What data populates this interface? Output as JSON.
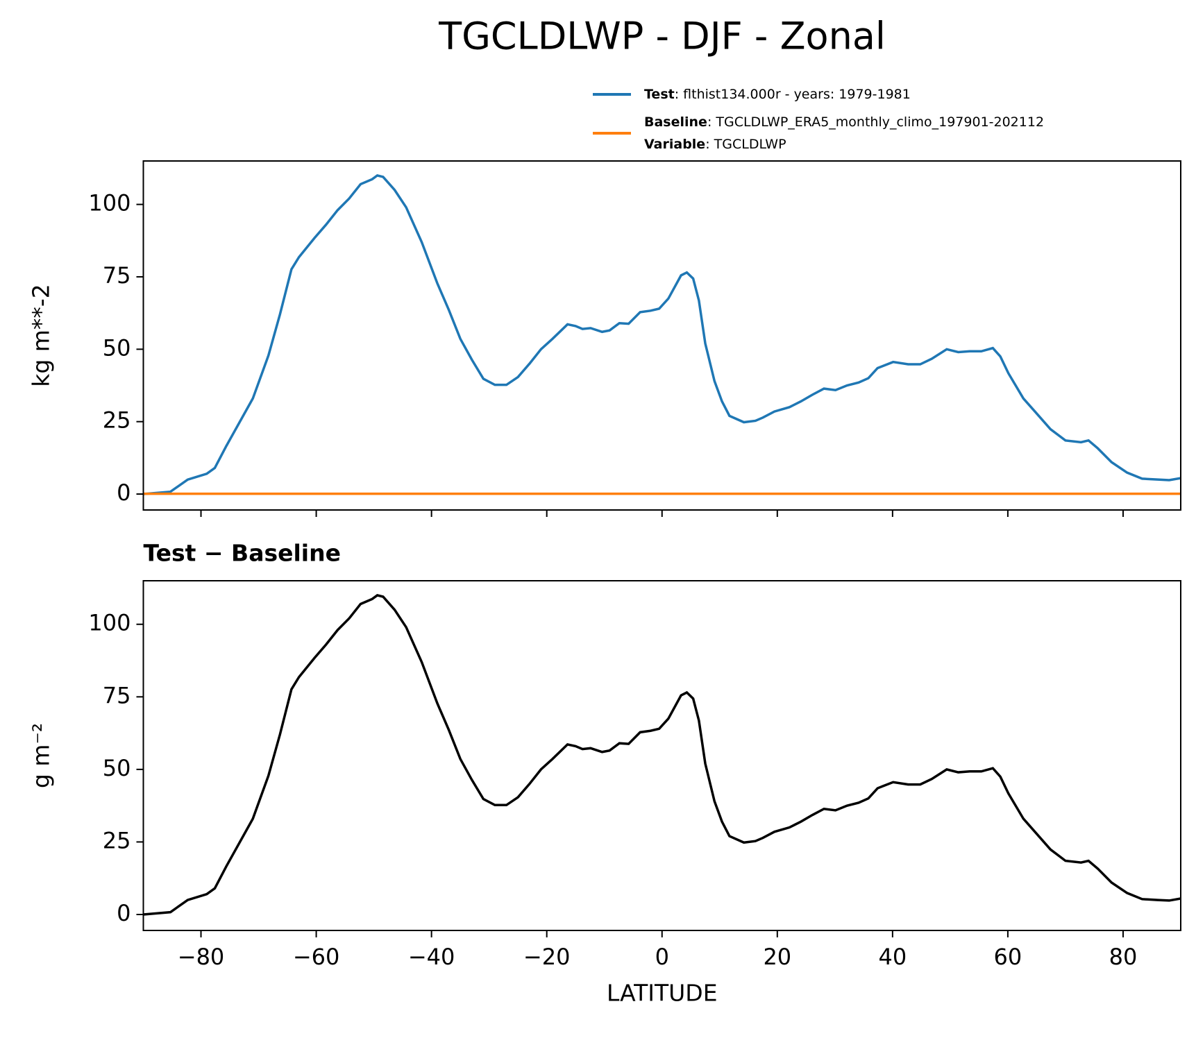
{
  "title": "TGCLDLWP - DJF - Zonal",
  "chart_data": [
    {
      "type": "line",
      "ylabel": "kg m**-2",
      "show_xtick_labels": false,
      "xlim": [
        -90,
        90
      ],
      "ylim": [
        -5.5,
        115
      ],
      "xticks": [
        {
          "value": -80,
          "label": "−80"
        },
        {
          "value": -60,
          "label": "−60"
        },
        {
          "value": -40,
          "label": "−40"
        },
        {
          "value": -20,
          "label": "−20"
        },
        0,
        20,
        40,
        60,
        80
      ],
      "yticks": [
        0,
        25,
        50,
        75,
        100
      ],
      "legend": "upper right outside",
      "series": [
        {
          "name": "Test",
          "description": ": flthist134.000r - years: 1979-1981",
          "color": "#1f77b4",
          "x": [
            -90,
            -85.3,
            -82.3,
            -79,
            -77.6,
            -75.6,
            -71,
            -68.3,
            -66.3,
            -64.3,
            -63,
            -60.3,
            -58.3,
            -56.3,
            -54.3,
            -52.3,
            -50.3,
            -49.4,
            -48.4,
            -46.4,
            -44.4,
            -41.7,
            -39,
            -37,
            -35,
            -33,
            -31,
            -29,
            -27,
            -25,
            -23,
            -21,
            -19,
            -16.4,
            -15,
            -13.8,
            -12.4,
            -10.4,
            -9.1,
            -7.4,
            -5.8,
            -3.8,
            -2,
            -0.5,
            1.1,
            3.3,
            4.3,
            5.4,
            6.4,
            7.5,
            9.1,
            10.4,
            11.7,
            14.2,
            16.2,
            17.5,
            19.5,
            22.1,
            24.1,
            26.1,
            28.1,
            30.1,
            32.1,
            34.1,
            35.8,
            37.4,
            40.1,
            42.7,
            44.8,
            46.8,
            49.4,
            51.4,
            53.4,
            55.4,
            57.4,
            58.7,
            60.1,
            62.7,
            64.7,
            67.4,
            70,
            72.7,
            74,
            75.6,
            78,
            80.7,
            83.3,
            86,
            88,
            90
          ],
          "values": [
            0,
            0.8,
            5,
            7,
            9,
            16.6,
            33,
            47.8,
            62,
            77.6,
            81.8,
            88.4,
            93,
            98,
            102,
            107,
            108.7,
            110,
            109.5,
            105,
            99,
            87,
            72.8,
            63.6,
            53.6,
            46.4,
            39.8,
            37.7,
            37.7,
            40.4,
            45,
            50,
            53.6,
            58.6,
            58,
            57,
            57.3,
            56,
            56.5,
            59,
            58.8,
            62.8,
            63.3,
            64,
            67.5,
            75.5,
            76.5,
            74.4,
            66.8,
            52,
            39,
            32,
            27,
            24.8,
            25.3,
            26.4,
            28.5,
            30,
            32,
            34.3,
            36.4,
            35.9,
            37.5,
            38.5,
            40,
            43.5,
            45.6,
            44.8,
            44.8,
            46.7,
            50,
            49,
            49.3,
            49.3,
            50.4,
            47.5,
            41.7,
            33,
            28.5,
            22.4,
            18.5,
            17.9,
            18.5,
            15.8,
            11,
            7.4,
            5.3,
            5,
            4.8,
            5.5
          ]
        },
        {
          "name": "Baseline",
          "description": ": TGCLDLWP_ERA5_monthly_climo_197901-202112",
          "color": "#ff7f0e",
          "extra": [
            {
              "key": "Variable",
              "value": ": TGCLDLWP"
            }
          ],
          "x": [
            -90,
            -45,
            0,
            45,
            90
          ],
          "values": [
            0.1,
            0.1,
            0.1,
            0.1,
            0.1
          ]
        }
      ]
    },
    {
      "type": "line",
      "title": "Test − Baseline",
      "xlabel": "LATITUDE",
      "ylabel": "g m⁻²",
      "show_xtick_labels": true,
      "xlim": [
        -90,
        90
      ],
      "ylim": [
        -5.5,
        115
      ],
      "xticks": [
        {
          "value": -80,
          "label": "−80"
        },
        {
          "value": -60,
          "label": "−60"
        },
        {
          "value": -40,
          "label": "−40"
        },
        {
          "value": -20,
          "label": "−20"
        },
        0,
        20,
        40,
        60,
        80
      ],
      "yticks": [
        0,
        25,
        50,
        75,
        100
      ],
      "series": [
        {
          "color": "#000000",
          "x": [
            -90,
            -85.3,
            -82.3,
            -79,
            -77.6,
            -75.6,
            -71,
            -68.3,
            -66.3,
            -64.3,
            -63,
            -60.3,
            -58.3,
            -56.3,
            -54.3,
            -52.3,
            -50.3,
            -49.4,
            -48.4,
            -46.4,
            -44.4,
            -41.7,
            -39,
            -37,
            -35,
            -33,
            -31,
            -29,
            -27,
            -25,
            -23,
            -21,
            -19,
            -16.4,
            -15,
            -13.8,
            -12.4,
            -10.4,
            -9.1,
            -7.4,
            -5.8,
            -3.8,
            -2,
            -0.5,
            1.1,
            3.3,
            4.3,
            5.4,
            6.4,
            7.5,
            9.1,
            10.4,
            11.7,
            14.2,
            16.2,
            17.5,
            19.5,
            22.1,
            24.1,
            26.1,
            28.1,
            30.1,
            32.1,
            34.1,
            35.8,
            37.4,
            40.1,
            42.7,
            44.8,
            46.8,
            49.4,
            51.4,
            53.4,
            55.4,
            57.4,
            58.7,
            60.1,
            62.7,
            64.7,
            67.4,
            70,
            72.7,
            74,
            75.6,
            78,
            80.7,
            83.3,
            86,
            88,
            90
          ],
          "values": [
            0,
            0.8,
            5,
            7,
            9,
            16.6,
            33,
            47.8,
            62,
            77.6,
            81.8,
            88.4,
            93,
            98,
            102,
            107,
            108.7,
            110,
            109.5,
            105,
            99,
            87,
            72.8,
            63.6,
            53.6,
            46.4,
            39.8,
            37.7,
            37.7,
            40.4,
            45,
            50,
            53.6,
            58.6,
            58,
            57,
            57.3,
            56,
            56.5,
            59,
            58.8,
            62.8,
            63.3,
            64,
            67.5,
            75.5,
            76.5,
            74.4,
            66.8,
            52,
            39,
            32,
            27,
            24.8,
            25.3,
            26.4,
            28.5,
            30,
            32,
            34.3,
            36.4,
            35.9,
            37.5,
            38.5,
            40,
            43.5,
            45.6,
            44.8,
            44.8,
            46.7,
            50,
            49,
            49.3,
            49.3,
            50.4,
            47.5,
            41.7,
            33,
            28.5,
            22.4,
            18.5,
            17.9,
            18.5,
            15.8,
            11,
            7.4,
            5.3,
            5,
            4.8,
            5.5
          ]
        }
      ]
    }
  ]
}
